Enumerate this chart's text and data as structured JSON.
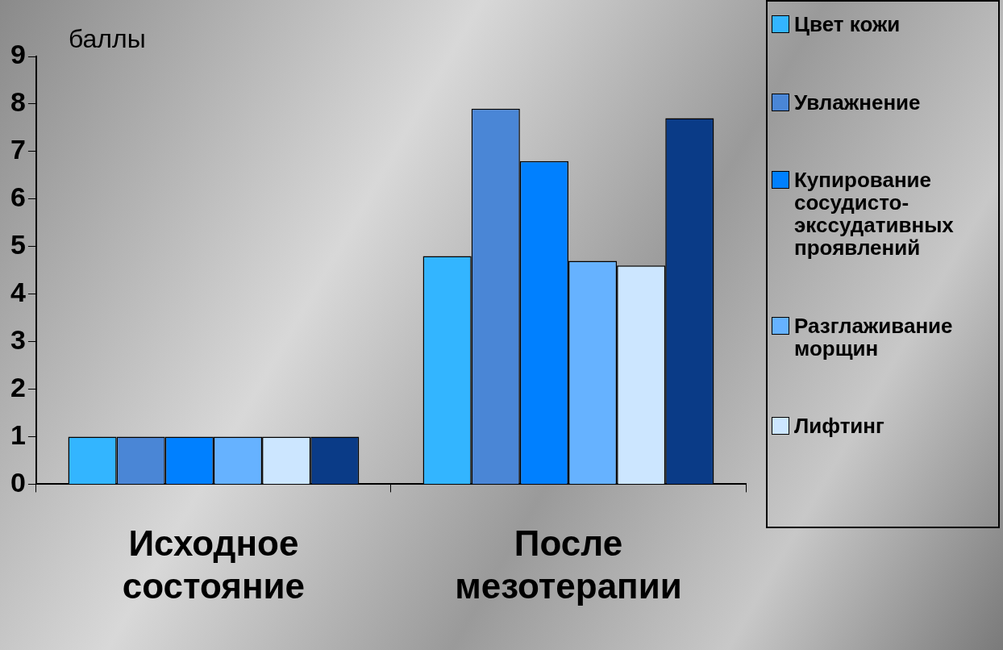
{
  "chart_data": {
    "type": "bar",
    "ylabel": "баллы",
    "categories": [
      "Исходное состояние",
      "После мезотерапии"
    ],
    "series": [
      {
        "name": "Цвет кожи",
        "color": "#33b5ff",
        "values": [
          1,
          4.8
        ]
      },
      {
        "name": "Увлажнение",
        "color": "#4a86d6",
        "values": [
          1,
          7.9
        ]
      },
      {
        "name": "Купирование сосудисто-экссудативных проявлений",
        "color": "#0080ff",
        "values": [
          1,
          6.8
        ]
      },
      {
        "name": "Разглаживание морщин",
        "color": "#66b2ff",
        "values": [
          1,
          4.7
        ]
      },
      {
        "name": "Лифтинг",
        "color": "#cce6ff",
        "values": [
          1,
          4.6
        ]
      },
      {
        "color": "#0a3b87",
        "values": [
          1,
          7.7
        ]
      }
    ],
    "ylim": [
      0,
      9
    ],
    "yticks": [
      0,
      1,
      2,
      3,
      4,
      5,
      6,
      7,
      8,
      9
    ],
    "grid": false,
    "legend": "right"
  }
}
